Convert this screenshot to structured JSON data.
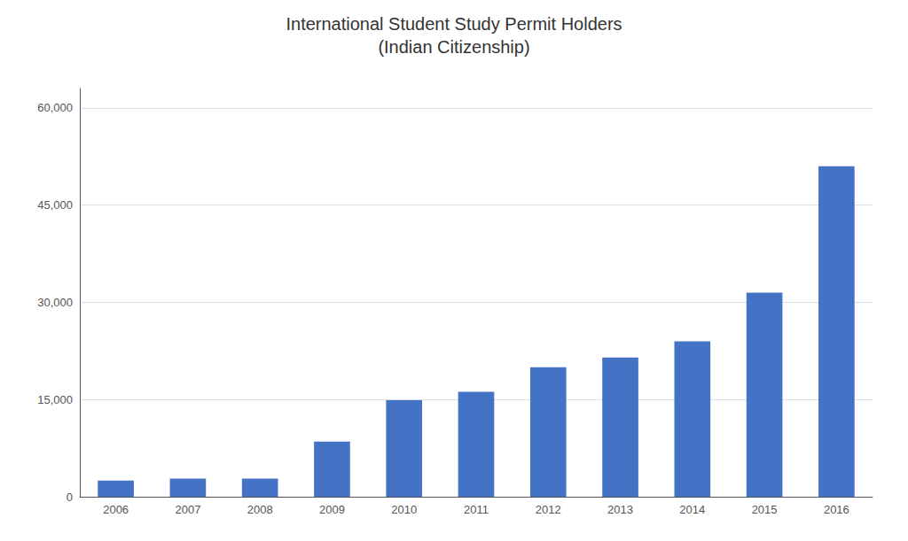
{
  "chart_data": {
    "type": "bar",
    "title": "International Student Study Permit Holders",
    "subtitle": "(Indian Citizenship)",
    "categories": [
      "2006",
      "2007",
      "2008",
      "2009",
      "2010",
      "2011",
      "2012",
      "2013",
      "2014",
      "2015",
      "2016"
    ],
    "values": [
      2500,
      2800,
      2800,
      8500,
      14900,
      16200,
      20000,
      21500,
      24000,
      31500,
      51000
    ],
    "color": "#4472C4",
    "ylim": [
      0,
      63000
    ],
    "yticks": [
      0,
      {
        "value": 15000,
        "label": "15,000"
      },
      {
        "value": 30000,
        "label": "30,000"
      },
      {
        "value": 45000,
        "label": "45,000"
      },
      {
        "value": 60000,
        "label": "60,000"
      }
    ],
    "grid": true
  }
}
